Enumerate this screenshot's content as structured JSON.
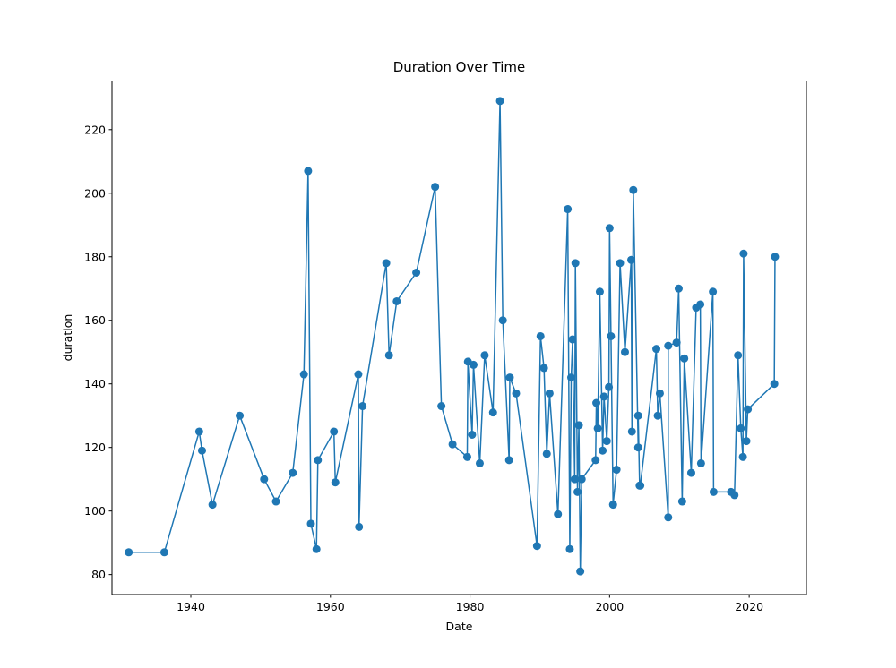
{
  "chart_data": {
    "type": "line",
    "title": "Duration Over Time",
    "xlabel": "Date",
    "ylabel": "duration",
    "xlim": [
      1928.7,
      2028.2
    ],
    "ylim": [
      73.7,
      235.3
    ],
    "x_ticks": [
      1940,
      1960,
      1980,
      2000,
      2020
    ],
    "y_ticks": [
      80,
      100,
      120,
      140,
      160,
      180,
      200,
      220
    ],
    "grid": false,
    "legend": "none",
    "marker": "circle",
    "color": "#1f77b4",
    "series": [
      {
        "x": [
          1931.1,
          1936.2,
          1941.2,
          1941.6,
          1943.1,
          1947.0,
          1950.5,
          1952.2,
          1954.6,
          1956.2,
          1956.8,
          1957.2,
          1958.0,
          1958.2,
          1960.5,
          1960.7,
          1964.0,
          1964.1,
          1964.6,
          1968.0,
          1968.4,
          1969.5,
          1972.3,
          1975.0,
          1975.9,
          1977.5,
          1979.6,
          1979.7,
          1980.3,
          1980.5,
          1981.4,
          1982.1,
          1983.3,
          1984.3,
          1984.7,
          1985.6,
          1985.7,
          1986.6,
          1989.6,
          1990.1,
          1990.6,
          1991.0,
          1991.4,
          1992.6,
          1994.0,
          1994.3,
          1994.5,
          1994.7,
          1995.0,
          1995.1,
          1995.4,
          1995.6,
          1995.8,
          1996.0,
          1998.0,
          1998.1,
          1998.3,
          1998.6,
          1999.0,
          1999.2,
          1999.6,
          1999.9,
          2000.0,
          2000.2,
          2000.5,
          2001.0,
          2001.5,
          2002.2,
          2003.1,
          2003.2,
          2003.4,
          2004.1,
          2004.1,
          2004.3,
          2004.4,
          2006.7,
          2006.9,
          2007.2,
          2008.4,
          2008.4,
          2009.6,
          2009.9,
          2010.4,
          2010.7,
          2011.7,
          2012.4,
          2013.0,
          2013.1,
          2014.8,
          2014.9,
          2017.4,
          2017.9,
          2018.4,
          2018.8,
          2019.1,
          2019.2,
          2019.6,
          2019.8,
          2023.6,
          2023.7
        ],
        "y": [
          87,
          87,
          125,
          119,
          102,
          130,
          110,
          103,
          112,
          143,
          207,
          96,
          88,
          116,
          125,
          109,
          143,
          95,
          133,
          178,
          149,
          166,
          175,
          202,
          133,
          121,
          117,
          147,
          124,
          146,
          115,
          149,
          131,
          229,
          160,
          116,
          142,
          137,
          89,
          155,
          145,
          118,
          137,
          99,
          195,
          88,
          142,
          154,
          110,
          178,
          106,
          127,
          81,
          110,
          116,
          134,
          126,
          169,
          119,
          136,
          122,
          139,
          189,
          155,
          102,
          113,
          178,
          150,
          179,
          125,
          201,
          120,
          130,
          108,
          108,
          151,
          130,
          137,
          98,
          152,
          153,
          170,
          103,
          148,
          112,
          164,
          165,
          115,
          169,
          106,
          106,
          105,
          149,
          126,
          117,
          181,
          122,
          132,
          140,
          180
        ]
      }
    ]
  }
}
